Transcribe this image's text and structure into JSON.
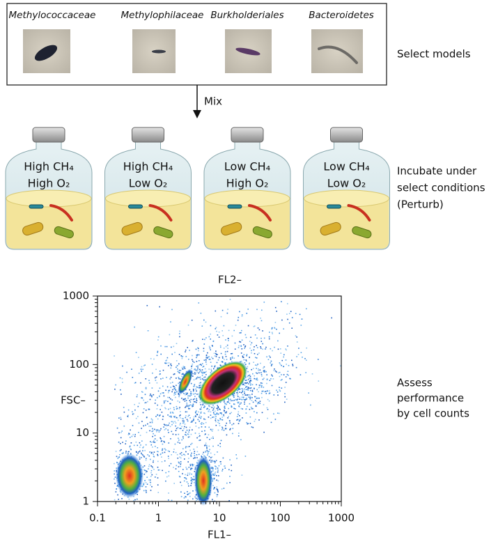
{
  "models": {
    "labels": [
      "Methylococcaceae",
      "Methylophilaceae",
      "Burkholderiales",
      "Bacteroidetes"
    ],
    "caption": "Select models"
  },
  "mix": "Mix",
  "bottles": [
    {
      "lines": [
        "High CH₄",
        "High O₂"
      ]
    },
    {
      "lines": [
        "High CH₄",
        "Low O₂"
      ]
    },
    {
      "lines": [
        "Low CH₄",
        "High O₂"
      ]
    },
    {
      "lines": [
        "Low CH₄",
        "Low O₂"
      ]
    }
  ],
  "incubate_caption": [
    "Incubate under",
    "select conditions",
    "(Perturb)"
  ],
  "plot": {
    "top_label": "FL2–",
    "ylabel": "FSC–",
    "xlabel": "FL1–",
    "log_scale": true,
    "xlim": [
      0.1,
      1000
    ],
    "xticks": [
      0.1,
      1,
      10,
      100,
      1000
    ],
    "ylim": [
      1,
      1000
    ],
    "yticks": [
      1,
      10,
      100,
      1000
    ],
    "caption": [
      "Assess",
      "performance",
      "by cell counts"
    ]
  }
}
